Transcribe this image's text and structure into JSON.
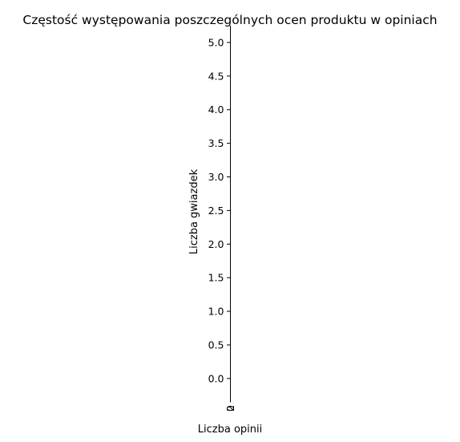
{
  "chart_data": {
    "type": "bar",
    "orientation": "horizontal",
    "title": "Częstość występowania poszczególnych ocen produktu w opiniach",
    "xlabel": "Liczba opinii",
    "ylabel": "Liczba gwiazdek",
    "x_ticks": [
      "2",
      "0"
    ],
    "y_ticks": [
      "0.0",
      "0.5",
      "1.0",
      "1.5",
      "2.0",
      "2.5",
      "3.0",
      "3.5",
      "4.0",
      "4.5",
      "5.0"
    ],
    "ylim": [
      -0.3,
      5.25
    ],
    "grid": false,
    "series": []
  }
}
